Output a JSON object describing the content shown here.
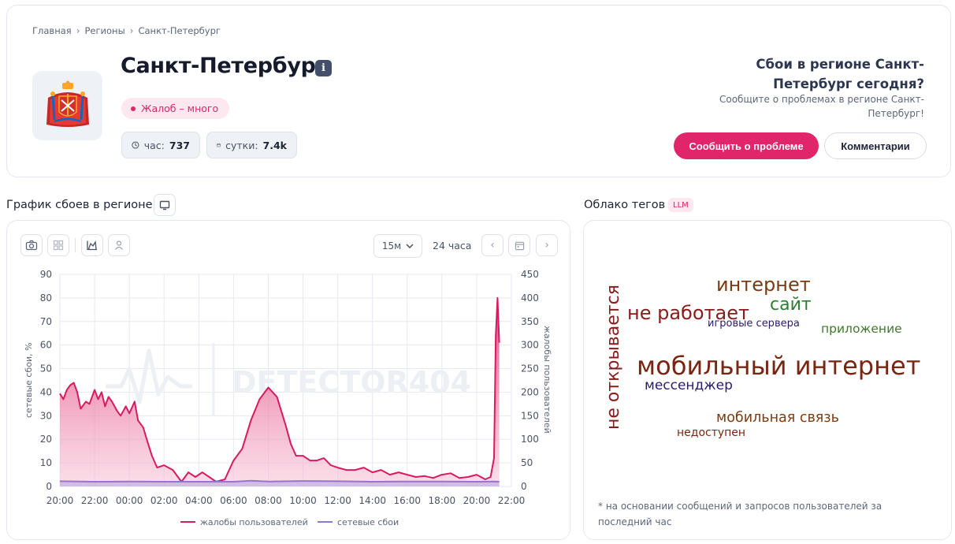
{
  "breadcrumb": [
    "Главная",
    "Регионы",
    "Санкт-Петербург"
  ],
  "region": {
    "title": "Санкт-Петербург",
    "info_icon": "i",
    "status": "Жалоб – много",
    "stats": {
      "hour_label": "час:",
      "hour_value": "737",
      "day_label": "сутки:",
      "day_value": "7.4k"
    }
  },
  "cta": {
    "title": "Сбои в регионе Санкт-Петербург сегодня?",
    "subtitle": "Сообщите о проблемах в регионе Санкт-Петербург!",
    "report_button": "Сообщить о проблеме",
    "comments_button": "Комментарии"
  },
  "chart_section": {
    "title": "График сбоев в регионе",
    "interval_select": "15м",
    "range_label": "24 часа"
  },
  "tags_section": {
    "title": "Облако тегов",
    "badge": "LLM",
    "footnote": "* на основании сообщений и запросов пользователей за последний час",
    "tags": [
      {
        "text": "интернет",
        "color": "#7a3b12"
      },
      {
        "text": "сайт",
        "color": "#2e7d32"
      },
      {
        "text": "не работает",
        "color": "#8b1a1a"
      },
      {
        "text": "игровые сервера",
        "color": "#2a1a6e"
      },
      {
        "text": "приложение",
        "color": "#3d7a2b"
      },
      {
        "text": "мобильный интернет",
        "color": "#7a2512"
      },
      {
        "text": "мессенджер",
        "color": "#2a1a6e"
      },
      {
        "text": "мобильная связь",
        "color": "#7a3b12"
      },
      {
        "text": "недоступен",
        "color": "#7a2512"
      },
      {
        "text": "не открывается",
        "color": "#8b1a1a"
      }
    ]
  },
  "colors": {
    "accent": "#e0256a",
    "complaints_line": "#d81b60",
    "network_line": "#9575cd"
  },
  "chart_data": {
    "type": "area",
    "x_ticks": [
      "20:00",
      "22:00",
      "00:00",
      "02:00",
      "04:00",
      "06:00",
      "08:00",
      "10:00",
      "12:00",
      "14:00",
      "16:00",
      "18:00",
      "20:00",
      "22:00"
    ],
    "y_left_label": "сетевые сбои, %",
    "y_left_ticks": [
      0,
      10,
      20,
      30,
      40,
      50,
      60,
      70,
      80,
      90
    ],
    "y_left_range": [
      0,
      90
    ],
    "y_right_label": "жалобы пользователей",
    "y_right_ticks": [
      0,
      50,
      100,
      150,
      200,
      250,
      300,
      350,
      400,
      450
    ],
    "y_right_range": [
      0,
      450
    ],
    "x_range_hours": [
      0,
      26
    ],
    "watermark": "DETECTOR404",
    "legend_position": "bottom",
    "series": [
      {
        "name": "жалобы пользователей",
        "axis": "right",
        "color": "#d81b60",
        "x_hours": [
          0,
          0.2,
          0.4,
          0.6,
          0.8,
          1.0,
          1.2,
          1.5,
          1.7,
          2.0,
          2.2,
          2.4,
          2.6,
          2.8,
          3.0,
          3.3,
          3.5,
          3.8,
          4.0,
          4.3,
          4.5,
          4.8,
          5.0,
          5.3,
          5.6,
          6.0,
          6.5,
          7.0,
          7.4,
          7.8,
          8.2,
          8.6,
          9.0,
          9.5,
          10.0,
          10.5,
          11.0,
          11.5,
          12.0,
          12.5,
          13.0,
          13.3,
          13.6,
          14.0,
          14.4,
          14.8,
          15.2,
          15.6,
          16.0,
          16.5,
          17.0,
          17.5,
          18.0,
          18.5,
          19.0,
          19.5,
          20.0,
          20.5,
          21.0,
          21.5,
          22.0,
          22.5,
          23.0,
          23.5,
          24.0,
          24.5,
          24.8,
          25.0,
          25.1,
          25.2,
          25.3
        ],
        "values": [
          197,
          185,
          205,
          215,
          220,
          200,
          165,
          180,
          175,
          205,
          185,
          200,
          170,
          190,
          180,
          160,
          150,
          170,
          155,
          180,
          140,
          125,
          100,
          65,
          40,
          45,
          35,
          10,
          30,
          20,
          30,
          20,
          10,
          15,
          55,
          80,
          140,
          185,
          210,
          190,
          130,
          90,
          65,
          65,
          55,
          55,
          60,
          45,
          40,
          35,
          35,
          40,
          30,
          35,
          25,
          30,
          25,
          20,
          22,
          18,
          25,
          28,
          18,
          20,
          25,
          15,
          20,
          60,
          320,
          400,
          305
        ]
      },
      {
        "name": "сетевые сбои",
        "axis": "left",
        "color": "#9575cd",
        "x_hours": [
          0,
          2,
          4,
          6,
          8,
          10,
          11,
          12,
          14,
          16,
          18,
          20,
          22,
          24,
          25,
          25.3
        ],
        "values": [
          2.2,
          2.0,
          2.1,
          2.0,
          2.0,
          2.0,
          2.4,
          2.1,
          2.3,
          2.2,
          2.0,
          2.1,
          2.1,
          2.0,
          2.1,
          2.0
        ]
      }
    ]
  }
}
